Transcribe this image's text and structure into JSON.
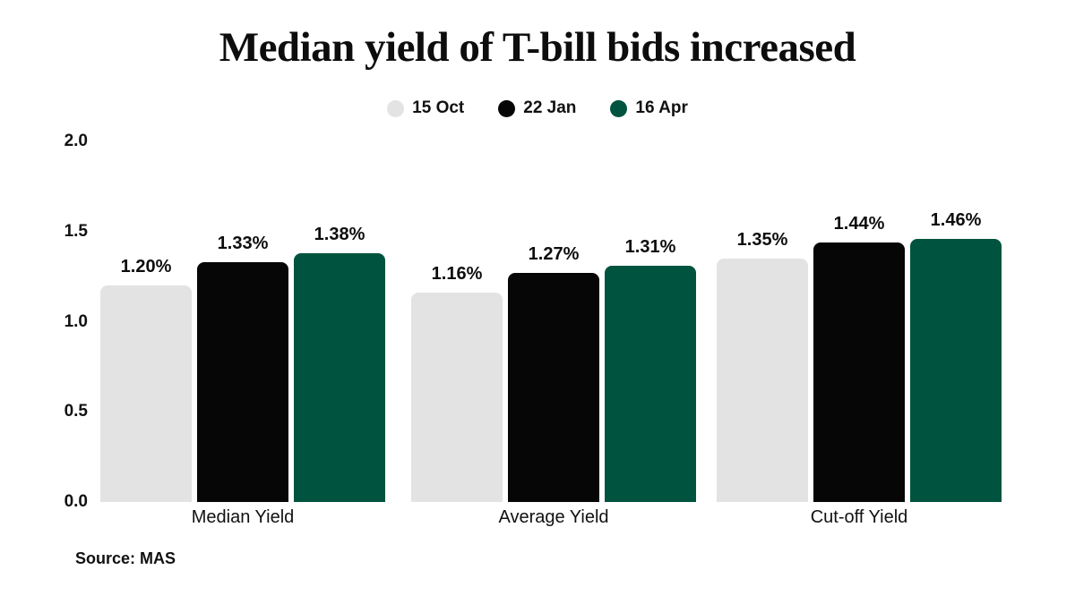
{
  "title": "Median yield of T-bill bids increased",
  "source": "Source: MAS",
  "legend": {
    "items": [
      {
        "label": "15 Oct",
        "color": "#e3e3e3"
      },
      {
        "label": "22 Jan",
        "color": "#060606"
      },
      {
        "label": "16 Apr",
        "color": "#00533e"
      }
    ]
  },
  "colors": {
    "background": "#ffffff",
    "text": "#0d0d0d",
    "series_15_oct": "#e3e3e3",
    "series_22_jan": "#060606",
    "series_16_apr": "#00533e"
  },
  "chart_data": {
    "type": "bar",
    "title": "Median yield of T-bill bids increased",
    "categories": [
      "Median Yield",
      "Average Yield",
      "Cut-off Yield"
    ],
    "series": [
      {
        "name": "15 Oct",
        "color": "#e3e3e3",
        "values": [
          1.2,
          1.16,
          1.35
        ],
        "labels": [
          "1.20%",
          "1.16%",
          "1.35%"
        ]
      },
      {
        "name": "22 Jan",
        "color": "#060606",
        "values": [
          1.33,
          1.27,
          1.44
        ],
        "labels": [
          "1.33%",
          "1.27%",
          "1.44%"
        ]
      },
      {
        "name": "16 Apr",
        "color": "#00533e",
        "values": [
          1.38,
          1.31,
          1.46
        ],
        "labels": [
          "1.38%",
          "1.31%",
          "1.46%"
        ]
      }
    ],
    "xlabel": "",
    "ylabel": "",
    "ylim": [
      0.0,
      2.0
    ],
    "yticks": [
      "0.0",
      "0.5",
      "1.0",
      "1.5",
      "2.0"
    ],
    "grid": false,
    "legend_position": "top",
    "source": "Source: MAS"
  }
}
